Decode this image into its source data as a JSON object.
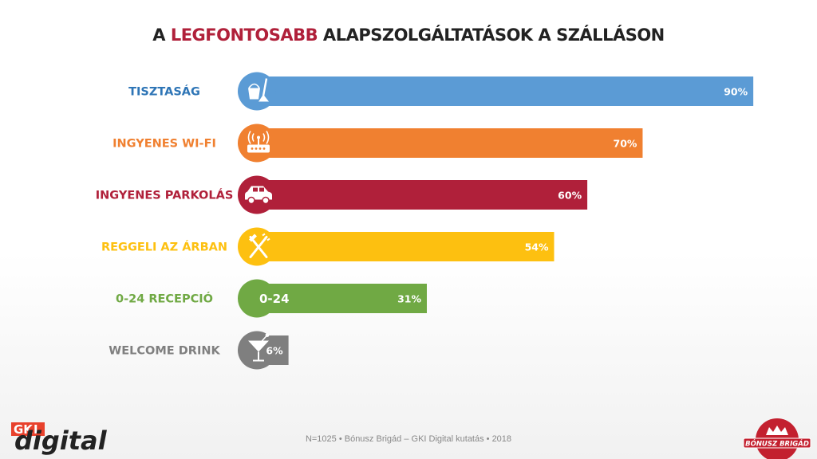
{
  "title": {
    "prefix": "A ",
    "highlight": "LEGFONTOSABB",
    "suffix": " ALAPSZOLGÁLTATÁSOK A SZÁLLÁSON",
    "highlight_color": "#b0203a"
  },
  "chart_data": {
    "type": "bar",
    "orientation": "horizontal",
    "title": "A LEGFONTOSABB ALAPSZOLGÁLTATÁSOK A SZÁLLÁSON",
    "categories": [
      "TISZTASÁG",
      "INGYENES WI-FI",
      "INGYENES PARKOLÁS",
      "REGGELI AZ ÁRBAN",
      "0-24 RECEPCIÓ",
      "WELCOME DRINK"
    ],
    "values": [
      90,
      70,
      60,
      54,
      31,
      6
    ],
    "value_labels": [
      "90%",
      "70%",
      "60%",
      "54%",
      "31%",
      "6%"
    ],
    "unit": "%",
    "xlim": [
      0,
      100
    ],
    "colors": [
      "#5b9bd5",
      "#f08030",
      "#b0203a",
      "#fdc010",
      "#70a944",
      "#7f7f7f"
    ],
    "label_colors": [
      "#2e75b6",
      "#f08030",
      "#b0203a",
      "#fdc010",
      "#70a944",
      "#7f7f7f"
    ],
    "icons": [
      "bucket-mop-icon",
      "router-icon",
      "car-icon",
      "fork-knife-icon",
      "0-24",
      "cocktail-glass-icon"
    ],
    "grid": false,
    "legend": "none"
  },
  "footer": "N=1025 • Bónusz Brigád – GKI Digital kutatás • 2018",
  "logos": {
    "gki": {
      "gk": "GK",
      "i": "I",
      "digital": "digital"
    },
    "bonusz": {
      "text": "BÓNUSZ BRIGÁD"
    }
  }
}
